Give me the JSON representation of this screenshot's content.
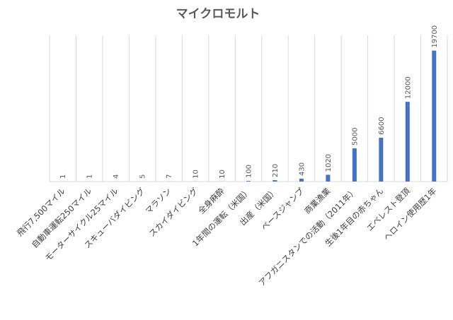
{
  "chart_data": {
    "type": "bar",
    "title": "マイクロモルト",
    "xlabel": "",
    "ylabel": "",
    "ylim": [
      0,
      22000
    ],
    "grid": "vertical category lines",
    "legend": "none",
    "bar_color": "#4472c4",
    "grid_color": "#d9d9d9",
    "categories": [
      "飛行7,500マイル",
      "自動車運転250マイル",
      "モーターサイクル25マイル",
      "スキューバダイビング",
      "マラソン",
      "スカイダイビング",
      "全身麻酔",
      "1年間の運転（米国）",
      "出産（米国）",
      "ベースジャンプ",
      "商業漁業",
      "アフガニスタンでの活動（2011年）",
      "生後1年目の赤ちゃん",
      "エベレスト登頂",
      "ヘロイン使用歴1年"
    ],
    "values": [
      1,
      1,
      4,
      5,
      7,
      10,
      10,
      100,
      210,
      430,
      1020,
      5000,
      6600,
      12000,
      19700
    ]
  }
}
